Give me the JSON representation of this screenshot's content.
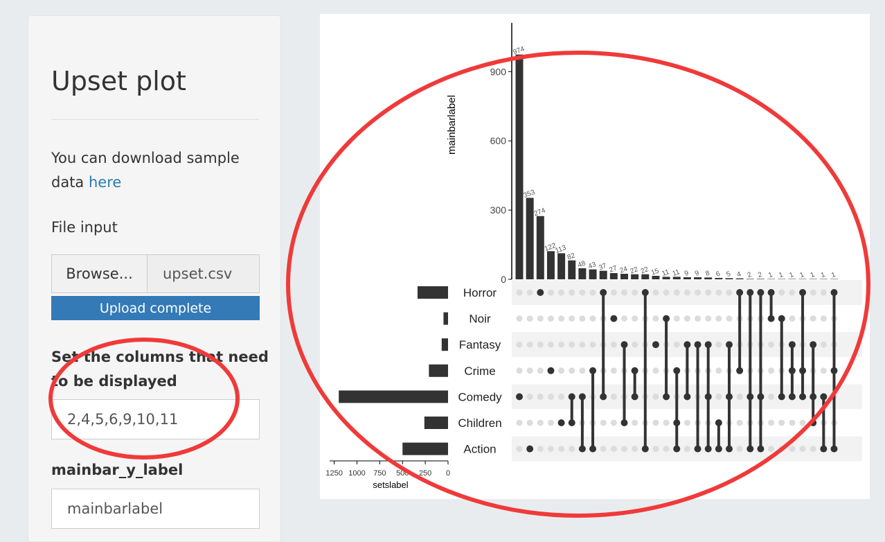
{
  "sidebar": {
    "title": "Upset plot",
    "download_text": "You can download sample",
    "download_text2": "data",
    "download_link": "here",
    "file_label": "File input",
    "browse_label": "Browse...",
    "file_name": "upset.csv",
    "upload_status": "Upload complete",
    "columns_label_1": "Set the columns that need",
    "columns_label_2": "to be displayed",
    "columns_value": "2,4,5,6,9,10,11",
    "mainbar_label": "mainbar_y_label",
    "mainbar_value": "mainbarlabel"
  },
  "annotation_color": "#f03a3a",
  "chart_data": {
    "type": "bar",
    "ylabel": "mainbarlabel",
    "xlabel": "setslabel",
    "main_yticks": [
      0,
      300,
      600,
      900
    ],
    "values": [
      974,
      353,
      274,
      122,
      113,
      82,
      48,
      43,
      37,
      27,
      24,
      22,
      22,
      15,
      11,
      11,
      9,
      9,
      8,
      6,
      5,
      4,
      2,
      2,
      1,
      1,
      1,
      1,
      1,
      1,
      1
    ],
    "sets": [
      "Horror",
      "Noir",
      "Fantasy",
      "Crime",
      "Comedy",
      "Children",
      "Action"
    ],
    "set_sizes": [
      335,
      50,
      70,
      210,
      1200,
      260,
      500
    ],
    "set_xticks": [
      1250,
      1000,
      750,
      500,
      250,
      0
    ],
    "intersections": [
      [
        4
      ],
      [
        6
      ],
      [
        0
      ],
      [
        3
      ],
      [
        5
      ],
      [
        4,
        5
      ],
      [
        4,
        6
      ],
      [
        3,
        6
      ],
      [
        0,
        4
      ],
      [
        1
      ],
      [
        2,
        5
      ],
      [
        3,
        4
      ],
      [
        0,
        6
      ],
      [
        2
      ],
      [
        1,
        4
      ],
      [
        3,
        5,
        6
      ],
      [
        2,
        4
      ],
      [
        2,
        6
      ],
      [
        2,
        4,
        6
      ],
      [
        5,
        6
      ],
      [
        2,
        4,
        6
      ],
      [
        0,
        3
      ],
      [
        0,
        4,
        6
      ],
      [
        0,
        4,
        6
      ],
      [
        0,
        1
      ],
      [
        1,
        4
      ],
      [
        2,
        3,
        4
      ],
      [
        0,
        3,
        4
      ],
      [
        2,
        4,
        5
      ],
      [
        4,
        6
      ],
      [
        0,
        3,
        6
      ]
    ]
  }
}
